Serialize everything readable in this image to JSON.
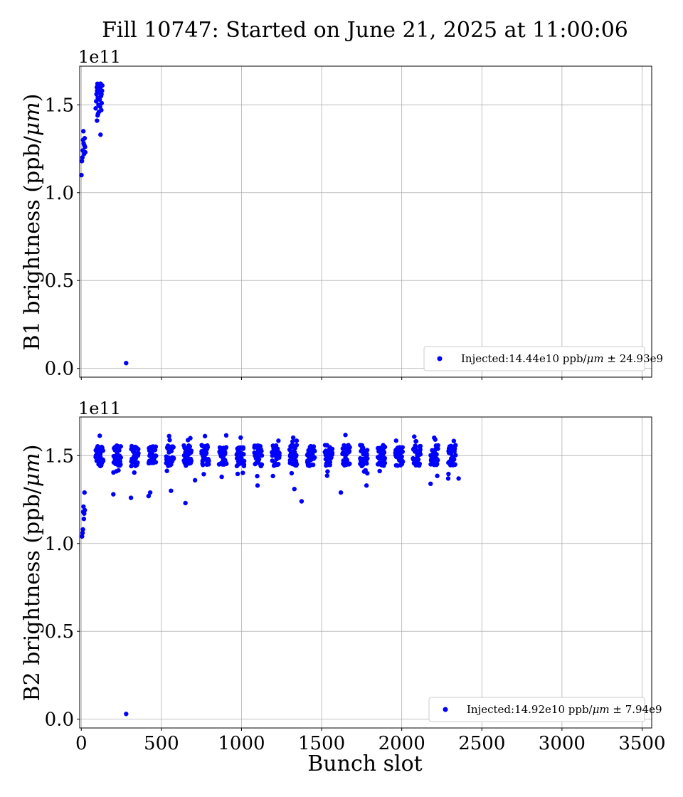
{
  "figure": {
    "title": "Fill 10747: Started on June 21, 2025 at 11:00:06",
    "xlabel": "Bunch slot"
  },
  "chart_data": [
    {
      "type": "scatter",
      "ylabel_text": "B1 brightness (ppb/",
      "ylabel_math": "μm",
      "ylabel_close": ")",
      "offset_label": "1e11",
      "xlim": [
        -10,
        3560
      ],
      "ylim": [
        -0.05,
        1.72
      ],
      "xticks": [
        0,
        500,
        1000,
        1500,
        2000,
        2500,
        3000,
        3500
      ],
      "yticks": [
        0.0,
        0.5,
        1.0,
        1.5
      ],
      "ytick_labels": [
        "0.0",
        "0.5",
        "1.0",
        "1.5"
      ],
      "grid": true,
      "legend_position": "lower-right",
      "series": [
        {
          "name_text": "Injected:14.44e10 ppb/",
          "name_math": "μm",
          "name_tail": " ± 24.93e9",
          "color": "#0000ff",
          "points": [
            [
              1,
              1.1
            ],
            [
              4,
              1.18
            ],
            [
              7,
              1.2
            ],
            [
              9,
              1.24
            ],
            [
              11,
              1.3
            ],
            [
              13,
              1.35
            ],
            [
              15,
              1.28
            ],
            [
              17,
              1.22
            ],
            [
              19,
              1.27
            ],
            [
              21,
              1.31
            ],
            [
              23,
              1.26
            ],
            [
              25,
              1.23
            ],
            [
              90,
              1.48
            ],
            [
              93,
              1.52
            ],
            [
              95,
              1.56
            ],
            [
              97,
              1.6
            ],
            [
              99,
              1.58
            ],
            [
              101,
              1.62
            ],
            [
              103,
              1.54
            ],
            [
              105,
              1.45
            ],
            [
              107,
              1.5
            ],
            [
              109,
              1.59
            ],
            [
              111,
              1.61
            ],
            [
              113,
              1.57
            ],
            [
              115,
              1.53
            ],
            [
              117,
              1.49
            ],
            [
              119,
              1.6
            ],
            [
              121,
              1.62
            ],
            [
              123,
              1.55
            ],
            [
              125,
              1.47
            ],
            [
              127,
              1.51
            ],
            [
              129,
              1.58
            ],
            [
              131,
              1.61
            ],
            [
              98,
              1.41
            ],
            [
              102,
              1.44
            ],
            [
              110,
              1.46
            ],
            [
              120,
              1.33
            ],
            [
              126,
              1.56
            ],
            [
              118,
              1.62
            ],
            [
              114,
              1.59
            ],
            [
              280,
              0.03
            ]
          ]
        }
      ]
    },
    {
      "type": "scatter",
      "ylabel_text": "B2 brightness (ppb/",
      "ylabel_math": "μm",
      "ylabel_close": ")",
      "offset_label": "1e11",
      "xlim": [
        -10,
        3560
      ],
      "ylim": [
        -0.05,
        1.72
      ],
      "xticks": [
        0,
        500,
        1000,
        1500,
        2000,
        2500,
        3000,
        3500
      ],
      "xtick_labels": [
        "0",
        "500",
        "1000",
        "1500",
        "2000",
        "2500",
        "3000",
        "3500"
      ],
      "yticks": [
        0.0,
        0.5,
        1.0,
        1.5
      ],
      "ytick_labels": [
        "0.0",
        "0.5",
        "1.0",
        "1.5"
      ],
      "grid": true,
      "legend_position": "lower-right",
      "series": [
        {
          "name_text": "Injected:14.92e10 ppb/",
          "name_math": "μm",
          "name_tail": " ± 7.94e9",
          "color": "#0000ff",
          "points": [
            [
              5,
              1.04
            ],
            [
              8,
              1.06
            ],
            [
              10,
              1.08
            ],
            [
              12,
              1.18
            ],
            [
              14,
              1.21
            ],
            [
              16,
              1.14
            ],
            [
              18,
              1.17
            ],
            [
              20,
              1.29
            ],
            [
              22,
              1.19
            ],
            [
              280,
              0.03
            ],
            [
              200,
              1.28
            ],
            [
              650,
              1.23
            ],
            [
              1375,
              1.24
            ],
            [
              310,
              1.26
            ],
            [
              430,
              1.29
            ],
            [
              420,
              1.27
            ],
            [
              560,
              1.3
            ],
            [
              710,
              1.36
            ],
            [
              1100,
              1.33
            ],
            [
              1330,
              1.31
            ],
            [
              1620,
              1.29
            ],
            [
              1780,
              1.33
            ],
            [
              2180,
              1.34
            ],
            [
              2290,
              1.37
            ],
            [
              2355,
              1.37
            ]
          ],
          "band": {
            "x_start": 90,
            "x_end": 2360,
            "group_width": 48,
            "group_gap": 62,
            "y_mid": 1.5,
            "y_spread": 0.06,
            "y_outlier_low": 1.37,
            "y_outlier_high": 1.62
          }
        }
      ]
    }
  ]
}
